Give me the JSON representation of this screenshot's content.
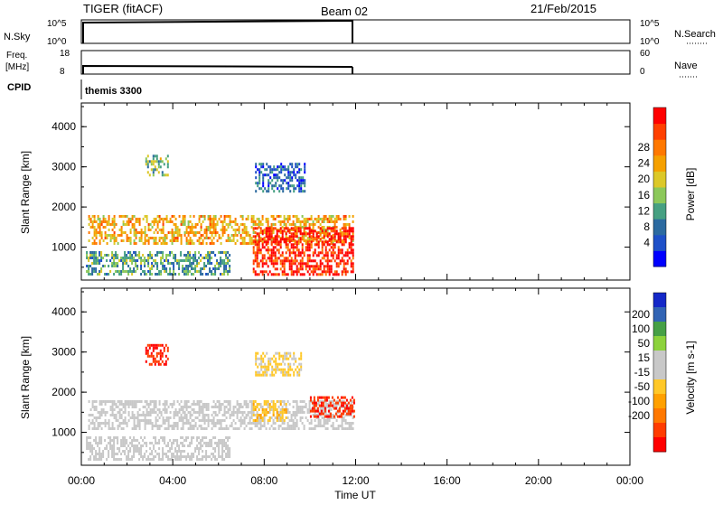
{
  "header": {
    "station": "TIGER (fitACF)",
    "beam": "Beam 02",
    "date": "21/Feb/2015"
  },
  "aux_panels": {
    "nsky_label": "N.Sky",
    "nsky_ticks": [
      "10^5",
      "10^0"
    ],
    "nsearch_label": "N.Search",
    "nsearch_ticks": [
      "10^5",
      "10^0"
    ],
    "freq_label_top": "Freq.",
    "freq_label_bottom": "[MHz]",
    "freq_ticks": [
      "18",
      "8"
    ],
    "nave_label": "Nave",
    "nave_ticks": [
      "60",
      "0"
    ],
    "cpid_label": "CPID",
    "cpid_value": "themis 3300"
  },
  "chart_data": [
    {
      "type": "heatmap",
      "panel": "power",
      "ylabel": "Slant Range [km]",
      "ylim": [
        180,
        4590
      ],
      "yticks": [
        "1000",
        "2000",
        "3000",
        "4000"
      ],
      "xlim": [
        0,
        24
      ],
      "colorbar_label": "Power [dB]",
      "colorbar_ticks": [
        "4",
        "8",
        "12",
        "16",
        "20",
        "24",
        "28"
      ],
      "colorbar_colors": [
        "#0000ff",
        "#1e50c8",
        "#2c6aa0",
        "#46a082",
        "#8cc85a",
        "#dcc828",
        "#f5a000",
        "#ff7800",
        "#ff4000",
        "#ff0000"
      ],
      "regions": [
        {
          "t": [
            0.3,
            11.9
          ],
          "range_km": [
            1100,
            1800
          ],
          "value": 20
        },
        {
          "t": [
            7.5,
            11.9
          ],
          "range_km": [
            300,
            1500
          ],
          "value": 28
        },
        {
          "t": [
            0.2,
            6.5
          ],
          "range_km": [
            300,
            900
          ],
          "value": 12
        },
        {
          "t": [
            7.6,
            9.8
          ],
          "range_km": [
            2400,
            3100
          ],
          "value": 8
        },
        {
          "t": [
            2.8,
            3.8
          ],
          "range_km": [
            2800,
            3300
          ],
          "value": 14
        }
      ]
    },
    {
      "type": "heatmap",
      "panel": "velocity",
      "ylabel": "Slant Range [km]",
      "ylim": [
        180,
        4590
      ],
      "yticks": [
        "1000",
        "2000",
        "3000",
        "4000"
      ],
      "xlim": [
        0,
        24
      ],
      "xticks": [
        "00:00",
        "04:00",
        "08:00",
        "12:00",
        "16:00",
        "20:00",
        "00:00"
      ],
      "xlabel": "Time UT",
      "colorbar_label": "Velocity [m s-1]",
      "colorbar_ticks": [
        "200",
        "100",
        "50",
        "15",
        "-15",
        "-50",
        "-100",
        "-200"
      ],
      "colorbar_colors": [
        "#1428c8",
        "#3264b4",
        "#46a046",
        "#8cd23c",
        "#c8c8c8",
        "#c8c8c8",
        "#ffc828",
        "#ffa000",
        "#ff7800",
        "#ff3c00",
        "#ff0000"
      ],
      "regions": [
        {
          "t": [
            0.3,
            11.9
          ],
          "range_km": [
            1100,
            1800
          ],
          "value": 0
        },
        {
          "t": [
            0.2,
            6.5
          ],
          "range_km": [
            300,
            900
          ],
          "value": 0
        },
        {
          "t": [
            7.5,
            9.0
          ],
          "range_km": [
            1300,
            1800
          ],
          "value": -60
        },
        {
          "t": [
            10.0,
            11.9
          ],
          "range_km": [
            1400,
            1900
          ],
          "value": -200
        },
        {
          "t": [
            7.6,
            9.6
          ],
          "range_km": [
            2400,
            3000
          ],
          "value": -30
        },
        {
          "t": [
            2.8,
            3.8
          ],
          "range_km": [
            2700,
            3200
          ],
          "value": -200
        }
      ]
    }
  ]
}
